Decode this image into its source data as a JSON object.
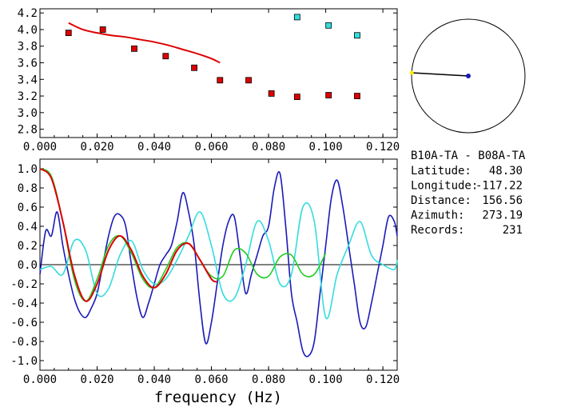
{
  "chart_data": [
    {
      "type": "scatter",
      "panel": "top",
      "xlim": [
        0.0,
        0.125
      ],
      "ylim": [
        2.7,
        4.25
      ],
      "xticks": [
        "0.000",
        "0.020",
        "0.040",
        "0.060",
        "0.080",
        "0.100",
        "0.120"
      ],
      "yticks": [
        "2.8",
        "3.0",
        "3.2",
        "3.4",
        "3.6",
        "3.8",
        "4.0",
        "4.2"
      ],
      "grid": false,
      "series": [
        {
          "marker": "square",
          "color": "#dd0000",
          "x": [
            0.01,
            0.022,
            0.033,
            0.044,
            0.054,
            0.063,
            0.073,
            0.081,
            0.09,
            0.101,
            0.111
          ],
          "y": [
            3.96,
            4.0,
            3.77,
            3.68,
            3.54,
            3.39,
            3.39,
            3.23,
            3.19,
            3.21,
            3.2
          ]
        },
        {
          "marker": "square",
          "color": "#33dddd",
          "x": [
            0.09,
            0.101,
            0.111
          ],
          "y": [
            4.15,
            4.05,
            3.93
          ]
        },
        {
          "line": true,
          "color": "#dd0000",
          "x": [
            0.01,
            0.015,
            0.02,
            0.025,
            0.03,
            0.035,
            0.04,
            0.045,
            0.05,
            0.055,
            0.06,
            0.063
          ],
          "y": [
            4.08,
            4.0,
            3.96,
            3.93,
            3.91,
            3.88,
            3.85,
            3.81,
            3.76,
            3.71,
            3.65,
            3.6
          ]
        }
      ]
    },
    {
      "type": "line",
      "panel": "bottom",
      "xlim": [
        0.0,
        0.125
      ],
      "ylim": [
        -1.1,
        1.1
      ],
      "xticks": [
        "0.000",
        "0.020",
        "0.040",
        "0.060",
        "0.080",
        "0.100",
        "0.120"
      ],
      "yticks": [
        "-1.0",
        "-0.8",
        "-0.6",
        "-0.4",
        "-0.2",
        "0.0",
        "0.2",
        "0.4",
        "0.6",
        "0.8",
        "1.0"
      ],
      "xlabel": "frequency (Hz)",
      "zero_line": true,
      "grid": false,
      "series": [
        {
          "color": "#1a1ab8",
          "x": [
            0.0,
            0.002,
            0.004,
            0.006,
            0.008,
            0.01,
            0.012,
            0.014,
            0.016,
            0.018,
            0.02,
            0.022,
            0.024,
            0.026,
            0.028,
            0.03,
            0.032,
            0.034,
            0.036,
            0.038,
            0.04,
            0.042,
            0.044,
            0.046,
            0.048,
            0.05,
            0.052,
            0.054,
            0.056,
            0.058,
            0.06,
            0.062,
            0.064,
            0.066,
            0.068,
            0.07,
            0.072,
            0.074,
            0.076,
            0.078,
            0.08,
            0.082,
            0.084,
            0.086,
            0.088,
            0.09,
            0.092,
            0.094,
            0.096,
            0.098,
            0.1,
            0.102,
            0.104,
            0.106,
            0.108,
            0.11,
            0.112,
            0.114,
            0.116,
            0.118,
            0.12,
            0.122,
            0.124,
            0.125
          ],
          "y": [
            -0.1,
            0.35,
            0.3,
            0.55,
            0.2,
            -0.1,
            -0.35,
            -0.5,
            -0.55,
            -0.45,
            -0.3,
            0.0,
            0.3,
            0.5,
            0.52,
            0.4,
            0.0,
            -0.35,
            -0.55,
            -0.4,
            -0.2,
            0.0,
            0.1,
            0.2,
            0.45,
            0.75,
            0.55,
            0.2,
            -0.4,
            -0.82,
            -0.6,
            -0.2,
            0.2,
            0.45,
            0.5,
            0.1,
            -0.3,
            -0.1,
            0.1,
            0.3,
            0.4,
            0.8,
            0.95,
            0.4,
            -0.3,
            -0.6,
            -0.9,
            -0.95,
            -0.8,
            -0.3,
            0.2,
            0.7,
            0.88,
            0.6,
            0.2,
            -0.2,
            -0.6,
            -0.65,
            -0.4,
            -0.1,
            0.2,
            0.5,
            0.45,
            0.3
          ]
        },
        {
          "color": "#33dddd",
          "x": [
            0.0,
            0.004,
            0.008,
            0.012,
            0.016,
            0.02,
            0.024,
            0.028,
            0.032,
            0.036,
            0.04,
            0.044,
            0.048,
            0.052,
            0.056,
            0.06,
            0.064,
            0.068,
            0.072,
            0.076,
            0.08,
            0.084,
            0.088,
            0.092,
            0.096,
            0.1,
            0.104,
            0.108,
            0.112,
            0.116,
            0.12,
            0.124,
            0.125
          ],
          "y": [
            -0.05,
            -0.02,
            -0.1,
            0.25,
            0.15,
            -0.3,
            -0.25,
            0.1,
            0.25,
            -0.05,
            -0.2,
            -0.15,
            0.05,
            0.3,
            0.55,
            0.2,
            -0.3,
            -0.35,
            0.0,
            0.45,
            0.25,
            -0.2,
            -0.1,
            0.6,
            0.45,
            -0.55,
            -0.1,
            0.2,
            0.45,
            0.1,
            0.0,
            -0.05,
            0.05
          ]
        },
        {
          "color": "#22cc22",
          "x": [
            0.0,
            0.004,
            0.008,
            0.012,
            0.016,
            0.02,
            0.024,
            0.028,
            0.032,
            0.036,
            0.04,
            0.044,
            0.048,
            0.052,
            0.056,
            0.06,
            0.064,
            0.068,
            0.072,
            0.076,
            0.08,
            0.084,
            0.088,
            0.092,
            0.096,
            0.1
          ],
          "y": [
            1.0,
            0.92,
            0.45,
            -0.15,
            -0.38,
            -0.15,
            0.2,
            0.3,
            0.12,
            -0.15,
            -0.24,
            -0.05,
            0.18,
            0.22,
            0.05,
            -0.12,
            -0.12,
            0.15,
            0.12,
            -0.1,
            -0.12,
            0.08,
            0.1,
            -0.1,
            -0.1,
            0.12
          ]
        },
        {
          "color": "#dd0000",
          "x": [
            0.0,
            0.004,
            0.008,
            0.012,
            0.016,
            0.02,
            0.024,
            0.028,
            0.032,
            0.036,
            0.04,
            0.044,
            0.048,
            0.052,
            0.056,
            0.06,
            0.062
          ],
          "y": [
            1.0,
            0.9,
            0.45,
            -0.1,
            -0.38,
            -0.2,
            0.15,
            0.3,
            0.15,
            -0.12,
            -0.24,
            -0.1,
            0.15,
            0.22,
            0.05,
            -0.15,
            -0.18
          ]
        }
      ]
    },
    {
      "type": "polar",
      "panel": "azimuth",
      "azimuth_deg": 273.19,
      "line_color": "#000000",
      "center_dot_color": "#1a1ab8",
      "end_dot_color": "#ffee00"
    }
  ],
  "info": {
    "station_pair": "B10A-TA - B08A-TA",
    "rows": [
      {
        "label": "Latitude:",
        "value": "48.30"
      },
      {
        "label": "Longitude:",
        "value": "-117.22"
      },
      {
        "label": "Distance:",
        "value": "156.56"
      },
      {
        "label": "Azimuth:",
        "value": "273.19"
      },
      {
        "label": "Records:",
        "value": "231"
      }
    ]
  }
}
